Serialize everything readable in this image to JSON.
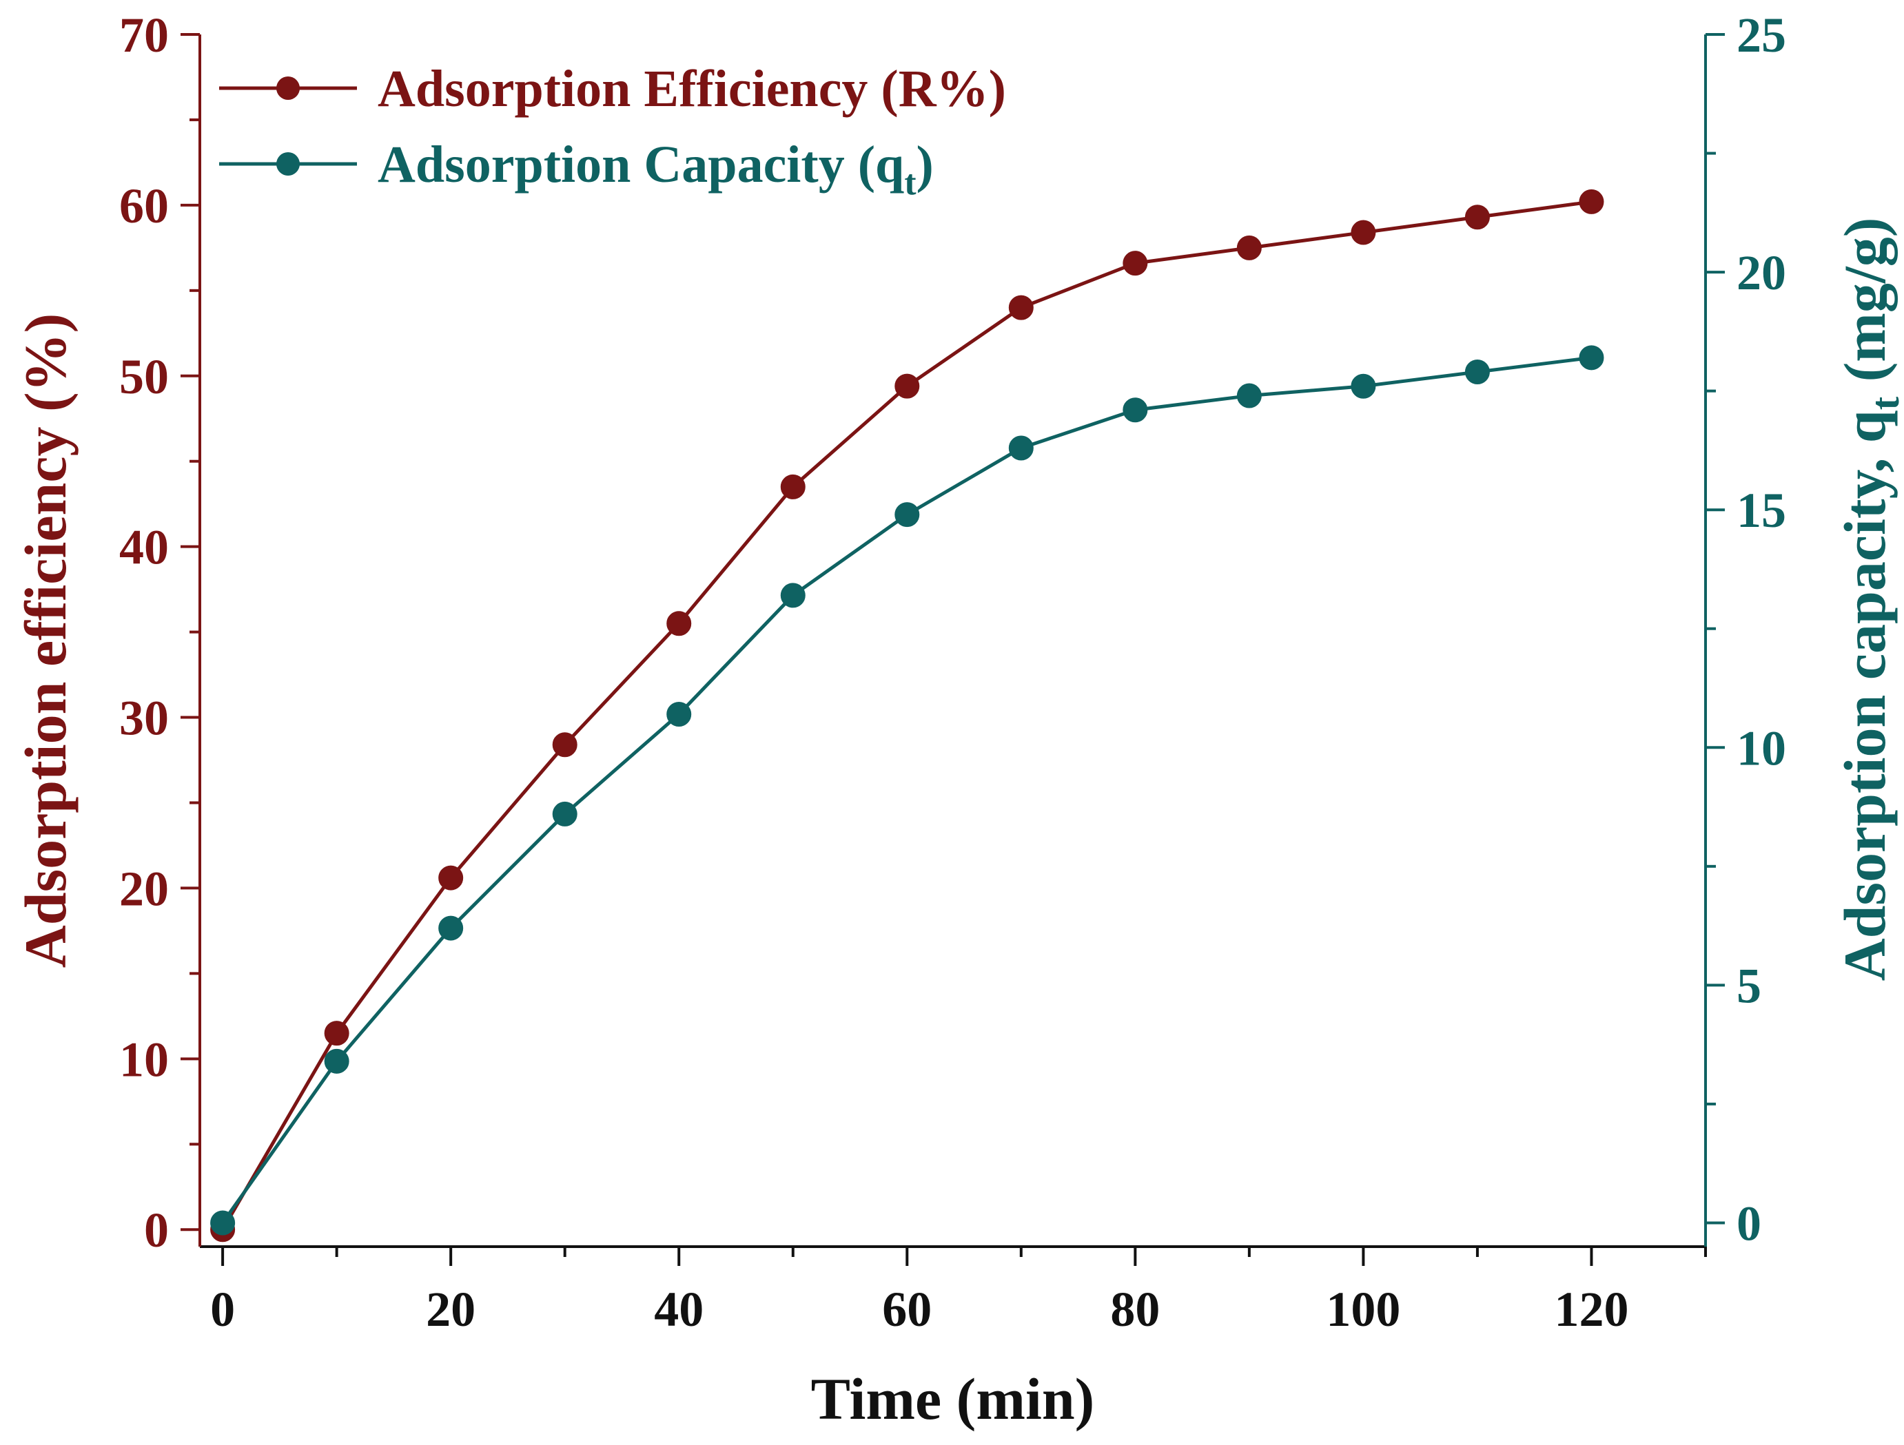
{
  "chart_data": {
    "type": "line",
    "title": "",
    "xlabel": "Time (min)",
    "x": [
      0,
      10,
      20,
      30,
      40,
      50,
      60,
      70,
      80,
      90,
      100,
      110,
      120
    ],
    "xlim": [
      -2,
      130
    ],
    "xticks": [
      0,
      20,
      40,
      60,
      80,
      100,
      120
    ],
    "xtick_labels": [
      "0",
      "20",
      "40",
      "60",
      "80",
      "100",
      "120"
    ],
    "left_axis": {
      "label_main": "Adsorption efficiency (%)",
      "ylim": [
        -1,
        70
      ],
      "ticks": [
        0,
        10,
        20,
        30,
        40,
        50,
        60,
        70
      ],
      "tick_labels": [
        "0",
        "10",
        "20",
        "30",
        "40",
        "50",
        "60",
        "70"
      ],
      "color": "#7B1414"
    },
    "right_axis": {
      "label_main": "Adsorption capacity, q",
      "label_sub": "t",
      "label_tail": " (mg/g)",
      "ylim": [
        -0.5,
        25
      ],
      "ticks": [
        0,
        5,
        10,
        15,
        20,
        25
      ],
      "tick_labels": [
        "0",
        "5",
        "10",
        "15",
        "20",
        "25"
      ],
      "color": "#0F6262"
    },
    "series": [
      {
        "name": "Adsorption Efficiency (R%)",
        "name_main": "Adsorption Efficiency (R%)",
        "name_sub": "",
        "name_tail": "",
        "axis": "left",
        "color": "#7B1414",
        "values": [
          0.0,
          11.5,
          20.6,
          28.4,
          35.5,
          43.5,
          49.4,
          54.0,
          56.6,
          57.5,
          58.4,
          59.3,
          60.2
        ]
      },
      {
        "name": "Adsorption Capacity (qt)",
        "name_main": "Adsorption Capacity (q",
        "name_sub": "t",
        "name_tail": ")",
        "axis": "right",
        "color": "#0F6262",
        "values": [
          0.0,
          3.4,
          6.2,
          8.6,
          10.7,
          13.2,
          14.9,
          16.3,
          17.1,
          17.4,
          17.6,
          17.9,
          18.2
        ]
      }
    ],
    "legend_position": "top-left",
    "grid": false
  }
}
